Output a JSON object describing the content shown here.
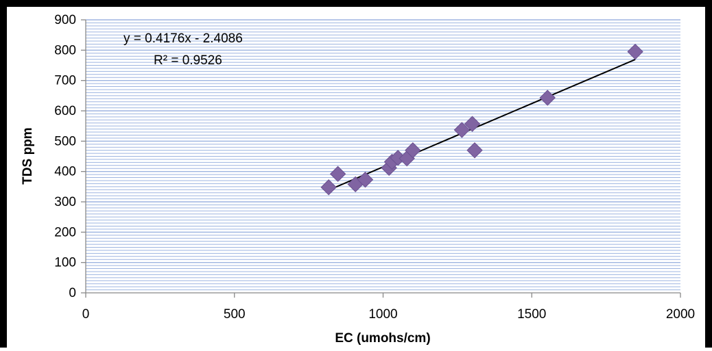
{
  "chart_data": {
    "type": "scatter",
    "xlabel": "EC (umohs/cm)",
    "ylabel": "TDS ppm",
    "xlim": [
      0,
      2000
    ],
    "ylim": [
      0,
      900
    ],
    "x_ticks": [
      "0",
      "500",
      "1000",
      "1500",
      "2000"
    ],
    "y_ticks": [
      "0",
      "100",
      "200",
      "300",
      "400",
      "500",
      "600",
      "700",
      "800",
      "900"
    ],
    "grid": "horizontal minor",
    "marker_color": "#8064a2",
    "grid_color": "#9db4e0",
    "trendline_color": "#000000",
    "series": [
      {
        "points": [
          {
            "x": 817,
            "y": 348
          },
          {
            "x": 848,
            "y": 392
          },
          {
            "x": 907,
            "y": 358
          },
          {
            "x": 940,
            "y": 373
          },
          {
            "x": 1020,
            "y": 412
          },
          {
            "x": 1030,
            "y": 432
          },
          {
            "x": 1050,
            "y": 445
          },
          {
            "x": 1080,
            "y": 443
          },
          {
            "x": 1100,
            "y": 470
          },
          {
            "x": 1265,
            "y": 537
          },
          {
            "x": 1300,
            "y": 557
          },
          {
            "x": 1308,
            "y": 470
          },
          {
            "x": 1553,
            "y": 643
          },
          {
            "x": 1848,
            "y": 795
          }
        ]
      }
    ],
    "trendline": {
      "slope": 0.4176,
      "intercept": -2.4086,
      "x_from": 817,
      "x_to": 1848,
      "equation": "y = 0.4176x - 2.4086",
      "r_squared": "R² = 0.9526"
    }
  }
}
